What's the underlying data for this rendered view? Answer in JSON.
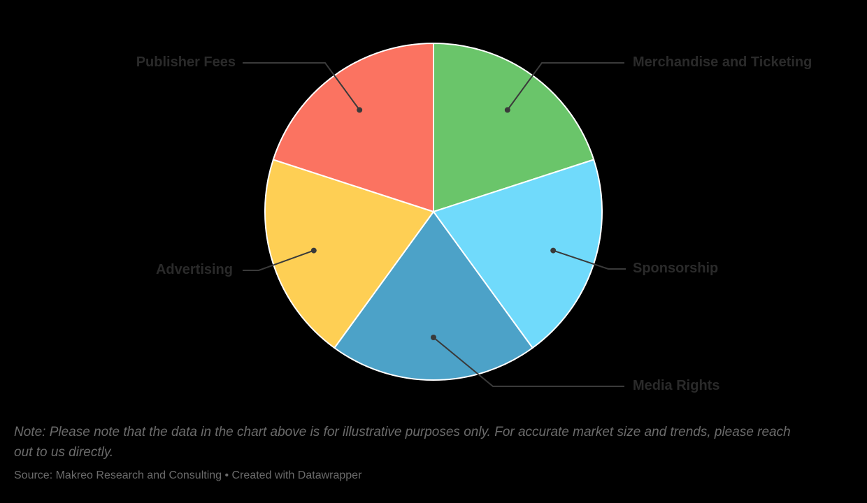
{
  "chart_data": {
    "type": "pie",
    "title": "",
    "unit": "%",
    "legend_position": "callout-labels",
    "slices": [
      {
        "label": "Merchandise and Ticketing",
        "value": 20,
        "color": "#6AC56A"
      },
      {
        "label": "Sponsorship",
        "value": 20,
        "color": "#70DAFB"
      },
      {
        "label": "Media Rights",
        "value": 20,
        "color": "#4CA2C8"
      },
      {
        "label": "Advertising",
        "value": 20,
        "color": "#FECF54"
      },
      {
        "label": "Publisher Fees",
        "value": 20,
        "color": "#FB7361"
      }
    ]
  },
  "colors": {
    "background": "#000000",
    "label_text": "#2a2a2a",
    "callout_line": "#3a3a3a",
    "slice_gap": "#ffffff",
    "footer_text": "#6b6b6b"
  },
  "footer": {
    "note": "Note: Please note that the data in the chart above is for illustrative purposes only. For accurate market size and trends, please reach out to us directly.",
    "source": "Source: Makreo Research and Consulting • Created with Datawrapper"
  }
}
